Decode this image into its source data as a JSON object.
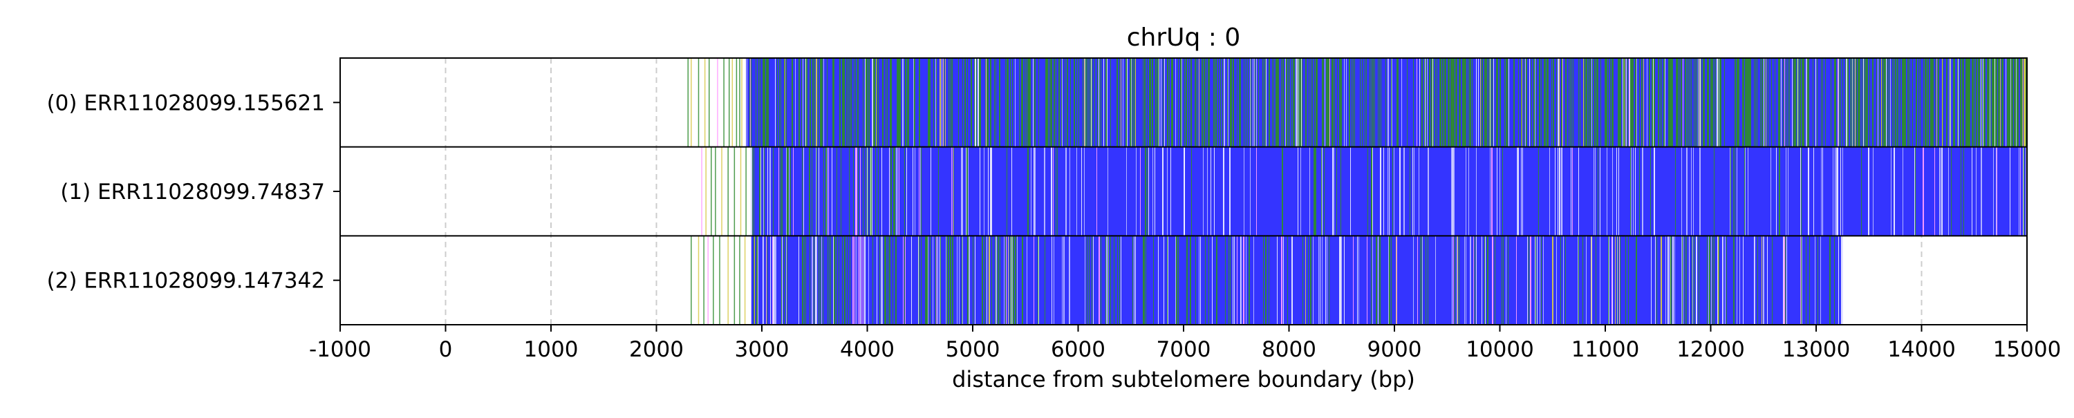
{
  "chart_data": {
    "type": "heatmap",
    "title": "chrUq : 0",
    "xlabel": "distance from subtelomere boundary (bp)",
    "xlim": [
      -1000,
      15000
    ],
    "xticks": [
      -1000,
      0,
      1000,
      2000,
      3000,
      4000,
      5000,
      6000,
      7000,
      8000,
      9000,
      10000,
      11000,
      12000,
      13000,
      14000,
      15000
    ],
    "grid": "vertical dashed at x ticks",
    "reads": [
      {
        "label": "(0) ERR11028099.155621",
        "start": 2850,
        "end": 15000,
        "dominant": "mixed",
        "green_fraction": 0.34,
        "white_fraction": 0.06,
        "yellow_fraction": 0.01,
        "pink_fraction": 0.01,
        "stripe_density": 0.95,
        "pre_start_stripes": [
          2300,
          2330,
          2400,
          2460,
          2500,
          2580,
          2640,
          2690,
          2720,
          2760,
          2790,
          2810
        ],
        "pre_start_colors": [
          "green",
          "yellow",
          "green",
          "yellow",
          "green",
          "pink",
          "green",
          "green",
          "yellow",
          "green",
          "green",
          "yellow"
        ],
        "features": [
          {
            "from": 13300,
            "to": 15000,
            "green_fraction": 0.55
          },
          {
            "from": 14950,
            "to": 15000,
            "color": "yellow"
          }
        ]
      },
      {
        "label": "(1) ERR11028099.74837",
        "start": 2900,
        "end": 15000,
        "dominant": "blue",
        "green_fraction": 0.05,
        "white_fraction": 0.2,
        "yellow_fraction": 0.0,
        "pink_fraction": 0.02,
        "stripe_density": 0.45,
        "pre_start_stripes": [
          2430,
          2470,
          2520,
          2560,
          2620,
          2680,
          2740,
          2800,
          2850
        ],
        "pre_start_colors": [
          "pink",
          "yellow",
          "green",
          "green",
          "yellow",
          "green",
          "green",
          "yellow",
          "green"
        ],
        "features": [
          {
            "from": 2900,
            "to": 4350,
            "green_fraction": 0.35
          },
          {
            "from": 3850,
            "to": 3950,
            "color": "pink"
          }
        ]
      },
      {
        "label": "(2) ERR11028099.147342",
        "start": 2900,
        "end": 13250,
        "dominant": "blue",
        "green_fraction": 0.15,
        "white_fraction": 0.18,
        "yellow_fraction": 0.01,
        "pink_fraction": 0.02,
        "stripe_density": 0.55,
        "pre_start_stripes": [
          2330,
          2400,
          2450,
          2490,
          2540,
          2600,
          2680,
          2740,
          2790,
          2840
        ],
        "pre_start_colors": [
          "green",
          "yellow",
          "green",
          "pink",
          "green",
          "green",
          "yellow",
          "green",
          "green",
          "yellow"
        ],
        "features": [
          {
            "from": 2900,
            "to": 5500,
            "green_fraction": 0.35
          },
          {
            "from": 3850,
            "to": 3960,
            "color": "pink"
          },
          {
            "from": 10150,
            "to": 10160,
            "color": "pink"
          }
        ]
      }
    ],
    "colors": {
      "blue": "#3434ff",
      "green": "#2e8b2e",
      "white": "#ffffff",
      "lightblue": "#b9b9ff",
      "yellow": "#d8c94a",
      "pink": "#ff9cff",
      "grid": "#cccccc"
    }
  }
}
